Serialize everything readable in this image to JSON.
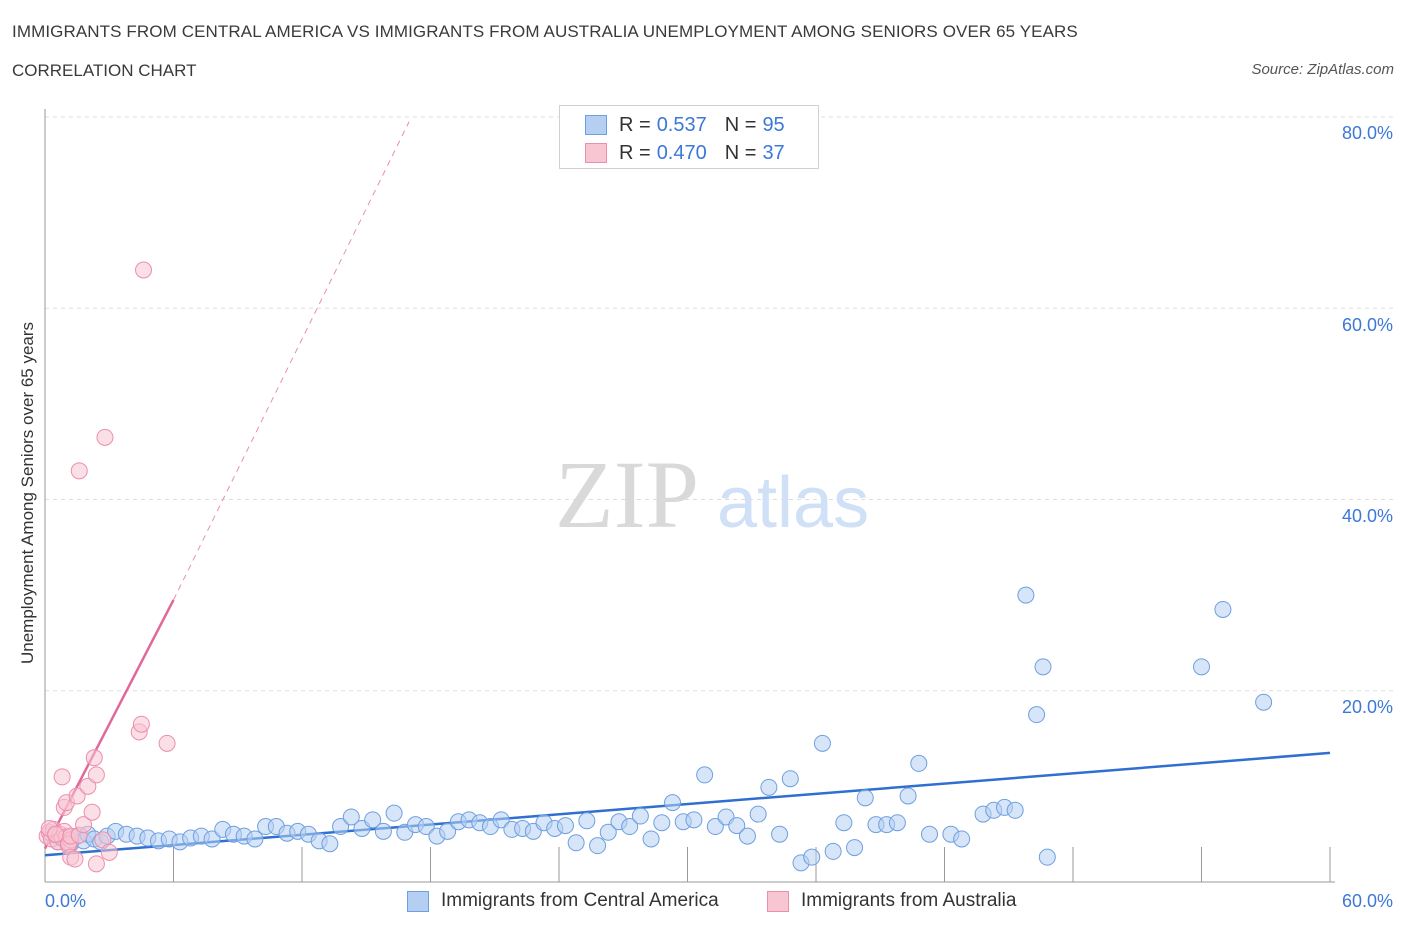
{
  "title": "IMMIGRANTS FROM CENTRAL AMERICA VS IMMIGRANTS FROM AUSTRALIA UNEMPLOYMENT AMONG SENIORS OVER 65 YEARS",
  "subtitle": "CORRELATION CHART",
  "source": "Source: ZipAtlas.com",
  "watermark": {
    "zip": "ZIP",
    "atlas": "atlas"
  },
  "legend": {
    "rows": [
      {
        "r_label": "R =",
        "r_value": "0.537",
        "n_label": "N =",
        "n_value": "95"
      },
      {
        "r_label": "R =",
        "r_value": "0.470",
        "n_label": "N =",
        "n_value": "37"
      }
    ]
  },
  "colors": {
    "blue_fill": "#b5cff3",
    "blue_stroke": "#6f9fe0",
    "blue_line": "#2f6fd0",
    "pink_fill": "#f8c5d3",
    "pink_stroke": "#eb8fab",
    "pink_line": "#e2689a",
    "axis_text": "#3b78d8",
    "grid": "#dddddd"
  },
  "chart_data": {
    "type": "scatter",
    "title": "IMMIGRANTS FROM CENTRAL AMERICA VS IMMIGRANTS FROM AUSTRALIA UNEMPLOYMENT AMONG SENIORS OVER 65 YEARS",
    "xlabel": "",
    "ylabel": "Unemployment Among Seniors over 65 years",
    "xlim": [
      0,
      60
    ],
    "ylim": [
      0,
      80
    ],
    "x_tick_labels": [
      "0.0%",
      "60.0%"
    ],
    "y_ticks": [
      20,
      40,
      60,
      80
    ],
    "y_tick_labels": [
      "20.0%",
      "40.0%",
      "60.0%",
      "80.0%"
    ],
    "grid": true,
    "legend_position": "bottom",
    "series": [
      {
        "name": "Immigrants from Central America",
        "R": 0.537,
        "N": 95,
        "trend": {
          "x": [
            0,
            60
          ],
          "y": [
            2.8,
            13.5
          ],
          "style": "solid"
        },
        "points": [
          [
            0.3,
            5.0
          ],
          [
            0.6,
            4.2
          ],
          [
            0.9,
            4.6
          ],
          [
            1.2,
            4.0
          ],
          [
            1.5,
            4.8
          ],
          [
            1.8,
            4.3
          ],
          [
            2.0,
            5.0
          ],
          [
            2.3,
            4.5
          ],
          [
            2.6,
            4.2
          ],
          [
            2.9,
            4.8
          ],
          [
            3.3,
            5.3
          ],
          [
            3.8,
            5.0
          ],
          [
            4.3,
            4.8
          ],
          [
            4.8,
            4.6
          ],
          [
            5.3,
            4.3
          ],
          [
            5.8,
            4.5
          ],
          [
            6.3,
            4.2
          ],
          [
            6.8,
            4.6
          ],
          [
            7.3,
            4.8
          ],
          [
            7.8,
            4.5
          ],
          [
            8.3,
            5.5
          ],
          [
            8.8,
            5.0
          ],
          [
            9.3,
            4.8
          ],
          [
            9.8,
            4.5
          ],
          [
            10.3,
            5.8
          ],
          [
            10.8,
            5.8
          ],
          [
            11.3,
            5.1
          ],
          [
            11.8,
            5.3
          ],
          [
            12.3,
            5.0
          ],
          [
            12.8,
            4.3
          ],
          [
            13.3,
            4.0
          ],
          [
            13.8,
            5.8
          ],
          [
            14.3,
            6.8
          ],
          [
            14.8,
            5.6
          ],
          [
            15.3,
            6.5
          ],
          [
            15.8,
            5.3
          ],
          [
            16.3,
            7.2
          ],
          [
            16.8,
            5.2
          ],
          [
            17.3,
            6.0
          ],
          [
            17.8,
            5.8
          ],
          [
            18.3,
            4.8
          ],
          [
            18.8,
            5.3
          ],
          [
            19.3,
            6.3
          ],
          [
            19.8,
            6.5
          ],
          [
            20.3,
            6.2
          ],
          [
            20.8,
            5.8
          ],
          [
            21.3,
            6.5
          ],
          [
            21.8,
            5.5
          ],
          [
            22.3,
            5.6
          ],
          [
            22.8,
            5.3
          ],
          [
            23.3,
            6.2
          ],
          [
            23.8,
            5.6
          ],
          [
            24.3,
            5.9
          ],
          [
            24.8,
            4.1
          ],
          [
            25.3,
            6.4
          ],
          [
            25.8,
            3.8
          ],
          [
            26.3,
            5.2
          ],
          [
            26.8,
            6.3
          ],
          [
            27.3,
            5.8
          ],
          [
            27.8,
            6.9
          ],
          [
            28.3,
            4.5
          ],
          [
            28.8,
            6.2
          ],
          [
            29.3,
            8.3
          ],
          [
            29.8,
            6.3
          ],
          [
            30.3,
            6.5
          ],
          [
            30.8,
            11.2
          ],
          [
            31.3,
            5.8
          ],
          [
            31.8,
            6.8
          ],
          [
            32.3,
            5.9
          ],
          [
            32.8,
            4.8
          ],
          [
            33.3,
            7.1
          ],
          [
            33.8,
            9.9
          ],
          [
            34.3,
            5.0
          ],
          [
            34.8,
            10.8
          ],
          [
            35.3,
            2.0
          ],
          [
            35.8,
            2.6
          ],
          [
            36.3,
            14.5
          ],
          [
            36.8,
            3.2
          ],
          [
            37.3,
            6.2
          ],
          [
            37.8,
            3.6
          ],
          [
            38.3,
            8.8
          ],
          [
            38.8,
            6.0
          ],
          [
            39.3,
            6.0
          ],
          [
            39.8,
            6.2
          ],
          [
            40.3,
            9.0
          ],
          [
            40.8,
            12.4
          ],
          [
            41.3,
            5.0
          ],
          [
            42.3,
            5.0
          ],
          [
            42.8,
            4.5
          ],
          [
            43.8,
            7.1
          ],
          [
            44.3,
            7.5
          ],
          [
            44.8,
            7.8
          ],
          [
            45.3,
            7.5
          ],
          [
            45.8,
            30.0
          ],
          [
            46.6,
            22.5
          ],
          [
            46.8,
            2.6
          ],
          [
            46.3,
            17.5
          ],
          [
            54.0,
            22.5
          ],
          [
            55.0,
            28.5
          ],
          [
            56.9,
            18.8
          ]
        ]
      },
      {
        "name": "Immigrants from Australia",
        "R": 0.47,
        "N": 37,
        "trend": {
          "x": [
            0,
            6
          ],
          "y": [
            3.5,
            29.5
          ],
          "dashed_extension": {
            "x": [
              6,
              17
            ],
            "y": [
              29.5,
              79.5
            ]
          }
        },
        "points": [
          [
            0.1,
            4.8
          ],
          [
            0.2,
            5.2
          ],
          [
            0.3,
            4.5
          ],
          [
            0.4,
            5.5
          ],
          [
            0.5,
            4.9
          ],
          [
            0.6,
            4.2
          ],
          [
            0.7,
            5.0
          ],
          [
            0.8,
            4.6
          ],
          [
            0.9,
            5.3
          ],
          [
            1.0,
            4.7
          ],
          [
            1.1,
            3.8
          ],
          [
            1.2,
            4.4
          ],
          [
            0.2,
            5.6
          ],
          [
            0.5,
            5.0
          ],
          [
            0.8,
            11.0
          ],
          [
            0.9,
            7.8
          ],
          [
            1.0,
            8.3
          ],
          [
            1.1,
            4.0
          ],
          [
            1.2,
            4.8
          ],
          [
            1.2,
            2.6
          ],
          [
            1.4,
            2.4
          ],
          [
            1.5,
            9.0
          ],
          [
            1.6,
            4.9
          ],
          [
            1.6,
            43.0
          ],
          [
            1.8,
            6.0
          ],
          [
            2.0,
            10.0
          ],
          [
            2.2,
            7.3
          ],
          [
            2.3,
            13.0
          ],
          [
            2.4,
            11.2
          ],
          [
            2.4,
            1.9
          ],
          [
            2.7,
            4.4
          ],
          [
            2.8,
            46.5
          ],
          [
            3.0,
            3.1
          ],
          [
            4.4,
            15.7
          ],
          [
            4.5,
            16.5
          ],
          [
            4.6,
            64.0
          ],
          [
            5.7,
            14.5
          ]
        ]
      }
    ]
  },
  "bottom_legend": {
    "blue_label": "Immigrants from Central America",
    "pink_label": "Immigrants from Australia"
  }
}
